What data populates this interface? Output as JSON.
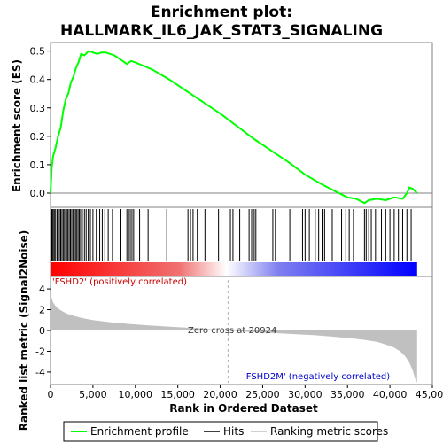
{
  "chart_data": {
    "title_line1": "Enrichment plot:",
    "title_line2": "HALLMARK_IL6_JAK_STAT3_SIGNALING",
    "type": "line",
    "top_panel": {
      "ylabel": "Enrichment score (ES)",
      "ylim": [
        -0.05,
        0.53
      ],
      "yticks": [
        "0.0",
        "0.1",
        "0.2",
        "0.3",
        "0.4",
        "0.5"
      ],
      "ytick_values": [
        0.0,
        0.1,
        0.2,
        0.3,
        0.4,
        0.5
      ],
      "line_color": "#00ff00",
      "es_curve": [
        [
          0,
          0.0
        ],
        [
          150,
          0.09
        ],
        [
          300,
          0.13
        ],
        [
          600,
          0.16
        ],
        [
          900,
          0.2
        ],
        [
          1200,
          0.23
        ],
        [
          1500,
          0.29
        ],
        [
          1800,
          0.33
        ],
        [
          2100,
          0.35
        ],
        [
          2400,
          0.39
        ],
        [
          2700,
          0.41
        ],
        [
          3000,
          0.44
        ],
        [
          3300,
          0.46
        ],
        [
          3600,
          0.49
        ],
        [
          4000,
          0.485
        ],
        [
          4500,
          0.5
        ],
        [
          5000,
          0.495
        ],
        [
          5500,
          0.49
        ],
        [
          6000,
          0.495
        ],
        [
          6500,
          0.495
        ],
        [
          7000,
          0.49
        ],
        [
          7500,
          0.485
        ],
        [
          8000,
          0.475
        ],
        [
          8500,
          0.465
        ],
        [
          9000,
          0.455
        ],
        [
          9500,
          0.465
        ],
        [
          10000,
          0.46
        ],
        [
          12000,
          0.435
        ],
        [
          14000,
          0.4
        ],
        [
          16000,
          0.36
        ],
        [
          18000,
          0.32
        ],
        [
          20000,
          0.28
        ],
        [
          22000,
          0.235
        ],
        [
          24000,
          0.19
        ],
        [
          26000,
          0.15
        ],
        [
          28000,
          0.11
        ],
        [
          30000,
          0.065
        ],
        [
          32000,
          0.03
        ],
        [
          34000,
          0.0
        ],
        [
          35000,
          -0.015
        ],
        [
          36000,
          -0.02
        ],
        [
          37000,
          -0.035
        ],
        [
          37500,
          -0.025
        ],
        [
          38500,
          -0.02
        ],
        [
          39500,
          -0.025
        ],
        [
          40500,
          -0.015
        ],
        [
          41500,
          -0.02
        ],
        [
          42000,
          0.0
        ],
        [
          42300,
          0.02
        ],
        [
          42700,
          0.015
        ],
        [
          43200,
          0.0
        ]
      ]
    },
    "hits_panel": {
      "hits": [
        50,
        120,
        200,
        320,
        450,
        600,
        780,
        900,
        1050,
        1200,
        1350,
        1500,
        1650,
        1800,
        1900,
        2050,
        2200,
        2350,
        2500,
        2650,
        2800,
        2950,
        3100,
        3250,
        3400,
        3550,
        3750,
        4000,
        4200,
        4450,
        4700,
        5000,
        5400,
        5800,
        6100,
        6400,
        6800,
        7300,
        8300,
        9000,
        9200,
        9400,
        9600,
        9800,
        10500,
        11500,
        13700,
        16200,
        16500,
        16800,
        17300,
        18200,
        19800,
        21200,
        21500,
        22300,
        23400,
        23700,
        24000,
        24200,
        26200,
        26500,
        28200,
        29700,
        30000,
        30500,
        31200,
        31600,
        32000,
        32300,
        33200,
        34300,
        34800,
        35200,
        35700,
        37000,
        37200,
        37500,
        37800,
        38300,
        39000,
        39500,
        40000,
        40500,
        41000,
        41500,
        42000,
        42500
      ],
      "ranking_bar_colors": [
        "#ff0000",
        "#ffffff",
        "#0000ff"
      ],
      "label_positive": "'FSHD2' (positively correlated)",
      "label_negative": "'FSHD2M' (negatively correlated)"
    },
    "ranked_panel": {
      "ylabel": "Ranked list metric (Signal2Noise)",
      "ylim": [
        -5.2,
        5.2
      ],
      "yticks": [
        "4",
        "2",
        "0",
        "-2",
        "-4"
      ],
      "ytick_values": [
        4,
        2,
        0,
        -2,
        -4
      ],
      "zero_cross_text": "Zero cross at 20924",
      "zero_cross": 20924,
      "metric_curve": [
        [
          0,
          4.0
        ],
        [
          100,
          3.2
        ],
        [
          300,
          2.7
        ],
        [
          600,
          2.35
        ],
        [
          1000,
          2.05
        ],
        [
          1500,
          1.8
        ],
        [
          2000,
          1.6
        ],
        [
          3000,
          1.35
        ],
        [
          4000,
          1.15
        ],
        [
          5000,
          1.0
        ],
        [
          7000,
          0.8
        ],
        [
          9000,
          0.65
        ],
        [
          11000,
          0.52
        ],
        [
          13000,
          0.42
        ],
        [
          15000,
          0.32
        ],
        [
          17000,
          0.22
        ],
        [
          19000,
          0.12
        ],
        [
          20924,
          0.0
        ],
        [
          23000,
          -0.12
        ],
        [
          25000,
          -0.2
        ],
        [
          27000,
          -0.28
        ],
        [
          29000,
          -0.36
        ],
        [
          31000,
          -0.45
        ],
        [
          33000,
          -0.58
        ],
        [
          35000,
          -0.72
        ],
        [
          37000,
          -0.9
        ],
        [
          38500,
          -1.1
        ],
        [
          39500,
          -1.35
        ],
        [
          40500,
          -1.65
        ],
        [
          41200,
          -2.0
        ],
        [
          41800,
          -2.5
        ],
        [
          42300,
          -3.1
        ],
        [
          42700,
          -3.9
        ],
        [
          43000,
          -4.7
        ],
        [
          43200,
          -5.0
        ]
      ]
    },
    "x_axis": {
      "xlabel": "Rank in Ordered Dataset",
      "xlim": [
        0,
        45000
      ],
      "xticks": [
        "0",
        "5,000",
        "10,000",
        "15,000",
        "20,000",
        "25,000",
        "30,000",
        "35,000",
        "40,000",
        "45,000"
      ],
      "xtick_values": [
        0,
        5000,
        10000,
        15000,
        20000,
        25000,
        30000,
        35000,
        40000,
        45000
      ],
      "n_genes": 43200
    },
    "legend": {
      "position": "bottom",
      "items": [
        {
          "label": "Enrichment profile",
          "color": "#00ff00"
        },
        {
          "label": "Hits",
          "color": "#000000"
        },
        {
          "label": "Ranking metric scores",
          "color": "#c0c0c0"
        }
      ]
    }
  }
}
